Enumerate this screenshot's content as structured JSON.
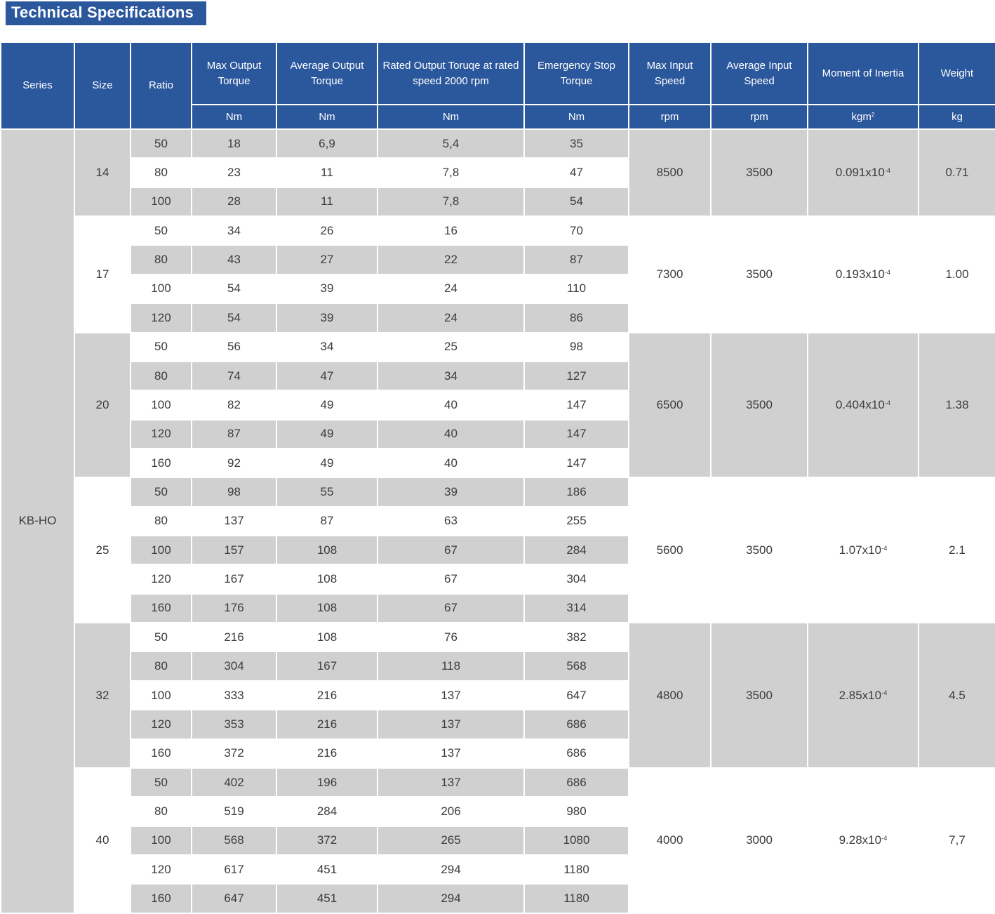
{
  "title": "Technical Specifications",
  "colors": {
    "header_blue": "#2B579C",
    "row_gray": "#D0D0D1",
    "body_text": "#3C3C3C"
  },
  "table": {
    "columns": [
      {
        "label": "Series",
        "unit": null
      },
      {
        "label": "Size",
        "unit": null
      },
      {
        "label": "Ratio",
        "unit": null
      },
      {
        "label": "Max Output Torque",
        "unit": "Nm"
      },
      {
        "label": "Average Output Torque",
        "unit": "Nm"
      },
      {
        "label": "Rated Output Toruqe at rated speed 2000 rpm",
        "unit": "Nm"
      },
      {
        "label": "Emergency Stop Torque",
        "unit": "Nm"
      },
      {
        "label": "Max Input Speed",
        "unit": "rpm"
      },
      {
        "label": "Average Input Speed",
        "unit": "rpm"
      },
      {
        "label": "Moment of Inertia",
        "unit": "kgm^2"
      },
      {
        "label": "Weight",
        "unit": "kg"
      }
    ],
    "series": "KB-HO",
    "groups": [
      {
        "size": "14",
        "max_input_speed": "8500",
        "avg_input_speed": "3500",
        "inertia": "0.091x10^-4",
        "weight": "0.71",
        "rows": [
          {
            "ratio": "50",
            "max_torque": "18",
            "avg_torque": "6,9",
            "rated_torque": "5,4",
            "estop_torque": "35"
          },
          {
            "ratio": "80",
            "max_torque": "23",
            "avg_torque": "11",
            "rated_torque": "7,8",
            "estop_torque": "47"
          },
          {
            "ratio": "100",
            "max_torque": "28",
            "avg_torque": "11",
            "rated_torque": "7,8",
            "estop_torque": "54"
          }
        ]
      },
      {
        "size": "17",
        "max_input_speed": "7300",
        "avg_input_speed": "3500",
        "inertia": "0.193x10^-4",
        "weight": "1.00",
        "rows": [
          {
            "ratio": "50",
            "max_torque": "34",
            "avg_torque": "26",
            "rated_torque": "16",
            "estop_torque": "70"
          },
          {
            "ratio": "80",
            "max_torque": "43",
            "avg_torque": "27",
            "rated_torque": "22",
            "estop_torque": "87"
          },
          {
            "ratio": "100",
            "max_torque": "54",
            "avg_torque": "39",
            "rated_torque": "24",
            "estop_torque": "110"
          },
          {
            "ratio": "120",
            "max_torque": "54",
            "avg_torque": "39",
            "rated_torque": "24",
            "estop_torque": "86"
          }
        ]
      },
      {
        "size": "20",
        "max_input_speed": "6500",
        "avg_input_speed": "3500",
        "inertia": "0.404x10^-4",
        "weight": "1.38",
        "rows": [
          {
            "ratio": "50",
            "max_torque": "56",
            "avg_torque": "34",
            "rated_torque": "25",
            "estop_torque": "98"
          },
          {
            "ratio": "80",
            "max_torque": "74",
            "avg_torque": "47",
            "rated_torque": "34",
            "estop_torque": "127"
          },
          {
            "ratio": "100",
            "max_torque": "82",
            "avg_torque": "49",
            "rated_torque": "40",
            "estop_torque": "147"
          },
          {
            "ratio": "120",
            "max_torque": "87",
            "avg_torque": "49",
            "rated_torque": "40",
            "estop_torque": "147"
          },
          {
            "ratio": "160",
            "max_torque": "92",
            "avg_torque": "49",
            "rated_torque": "40",
            "estop_torque": "147"
          }
        ]
      },
      {
        "size": "25",
        "max_input_speed": "5600",
        "avg_input_speed": "3500",
        "inertia": "1.07x10^-4",
        "weight": "2.1",
        "rows": [
          {
            "ratio": "50",
            "max_torque": "98",
            "avg_torque": "55",
            "rated_torque": "39",
            "estop_torque": "186"
          },
          {
            "ratio": "80",
            "max_torque": "137",
            "avg_torque": "87",
            "rated_torque": "63",
            "estop_torque": "255"
          },
          {
            "ratio": "100",
            "max_torque": "157",
            "avg_torque": "108",
            "rated_torque": "67",
            "estop_torque": "284"
          },
          {
            "ratio": "120",
            "max_torque": "167",
            "avg_torque": "108",
            "rated_torque": "67",
            "estop_torque": "304"
          },
          {
            "ratio": "160",
            "max_torque": "176",
            "avg_torque": "108",
            "rated_torque": "67",
            "estop_torque": "314"
          }
        ]
      },
      {
        "size": "32",
        "max_input_speed": "4800",
        "avg_input_speed": "3500",
        "inertia": "2.85x10^-4",
        "weight": "4.5",
        "rows": [
          {
            "ratio": "50",
            "max_torque": "216",
            "avg_torque": "108",
            "rated_torque": "76",
            "estop_torque": "382"
          },
          {
            "ratio": "80",
            "max_torque": "304",
            "avg_torque": "167",
            "rated_torque": "118",
            "estop_torque": "568"
          },
          {
            "ratio": "100",
            "max_torque": "333",
            "avg_torque": "216",
            "rated_torque": "137",
            "estop_torque": "647"
          },
          {
            "ratio": "120",
            "max_torque": "353",
            "avg_torque": "216",
            "rated_torque": "137",
            "estop_torque": "686"
          },
          {
            "ratio": "160",
            "max_torque": "372",
            "avg_torque": "216",
            "rated_torque": "137",
            "estop_torque": "686"
          }
        ]
      },
      {
        "size": "40",
        "max_input_speed": "4000",
        "avg_input_speed": "3000",
        "inertia": "9.28x10^-4",
        "weight": "7,7",
        "rows": [
          {
            "ratio": "50",
            "max_torque": "402",
            "avg_torque": "196",
            "rated_torque": "137",
            "estop_torque": "686"
          },
          {
            "ratio": "80",
            "max_torque": "519",
            "avg_torque": "284",
            "rated_torque": "206",
            "estop_torque": "980"
          },
          {
            "ratio": "100",
            "max_torque": "568",
            "avg_torque": "372",
            "rated_torque": "265",
            "estop_torque": "1080"
          },
          {
            "ratio": "120",
            "max_torque": "617",
            "avg_torque": "451",
            "rated_torque": "294",
            "estop_torque": "1180"
          },
          {
            "ratio": "160",
            "max_torque": "647",
            "avg_torque": "451",
            "rated_torque": "294",
            "estop_torque": "1180"
          }
        ]
      }
    ]
  }
}
